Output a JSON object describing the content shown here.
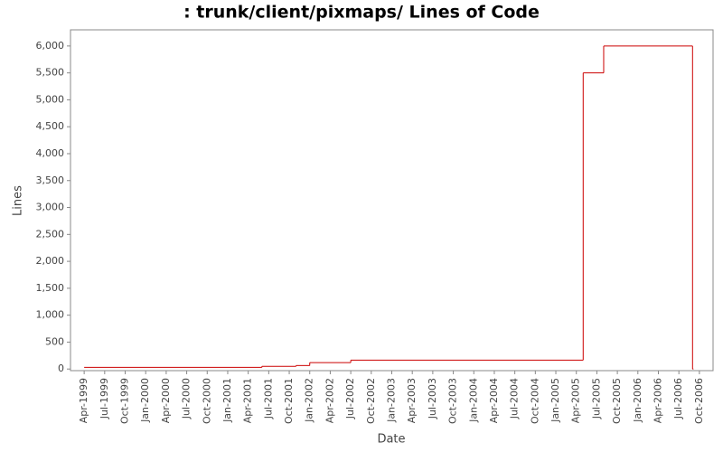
{
  "chart_data": {
    "type": "step",
    "title": ": trunk/client/pixmaps/ Lines of Code",
    "x_label": "Date",
    "y_label": "Lines",
    "series": [
      {
        "name": "Lines",
        "color": "#cc0000",
        "x": [
          "1999-04",
          "2001-06",
          "2001-11",
          "2002-01",
          "2002-07",
          "2005-05",
          "2005-08",
          "2006-09"
        ],
        "values": [
          30,
          50,
          65,
          120,
          165,
          5500,
          6000,
          0
        ]
      }
    ],
    "xlim": [
      "1999-02",
      "2006-12"
    ],
    "xticks": [
      {
        "value": "1999-04",
        "label": "Apr-1999"
      },
      {
        "value": "1999-07",
        "label": "Jul-1999"
      },
      {
        "value": "1999-10",
        "label": "Oct-1999"
      },
      {
        "value": "2000-01",
        "label": "Jan-2000"
      },
      {
        "value": "2000-04",
        "label": "Apr-2000"
      },
      {
        "value": "2000-07",
        "label": "Jul-2000"
      },
      {
        "value": "2000-10",
        "label": "Oct-2000"
      },
      {
        "value": "2001-01",
        "label": "Jan-2001"
      },
      {
        "value": "2001-04",
        "label": "Apr-2001"
      },
      {
        "value": "2001-07",
        "label": "Jul-2001"
      },
      {
        "value": "2001-10",
        "label": "Oct-2001"
      },
      {
        "value": "2002-01",
        "label": "Jan-2002"
      },
      {
        "value": "2002-04",
        "label": "Apr-2002"
      },
      {
        "value": "2002-07",
        "label": "Jul-2002"
      },
      {
        "value": "2002-10",
        "label": "Oct-2002"
      },
      {
        "value": "2003-01",
        "label": "Jan-2003"
      },
      {
        "value": "2003-04",
        "label": "Apr-2003"
      },
      {
        "value": "2003-07",
        "label": "Jul-2003"
      },
      {
        "value": "2003-10",
        "label": "Oct-2003"
      },
      {
        "value": "2004-01",
        "label": "Jan-2004"
      },
      {
        "value": "2004-04",
        "label": "Apr-2004"
      },
      {
        "value": "2004-07",
        "label": "Jul-2004"
      },
      {
        "value": "2004-10",
        "label": "Oct-2004"
      },
      {
        "value": "2005-01",
        "label": "Jan-2005"
      },
      {
        "value": "2005-04",
        "label": "Apr-2005"
      },
      {
        "value": "2005-07",
        "label": "Jul-2005"
      },
      {
        "value": "2005-10",
        "label": "Oct-2005"
      },
      {
        "value": "2006-01",
        "label": "Jan-2006"
      },
      {
        "value": "2006-04",
        "label": "Apr-2006"
      },
      {
        "value": "2006-07",
        "label": "Jul-2006"
      },
      {
        "value": "2006-10",
        "label": "Oct-2006"
      }
    ],
    "ylim": [
      -30,
      6300
    ],
    "yticks": [
      0,
      500,
      {
        "value": 1000,
        "label": "1,000"
      },
      {
        "value": 1500,
        "label": "1,500"
      },
      {
        "value": 2000,
        "label": "2,000"
      },
      {
        "value": 2500,
        "label": "2,500"
      },
      {
        "value": 3000,
        "label": "3,000"
      },
      {
        "value": 3500,
        "label": "3,500"
      },
      {
        "value": 4000,
        "label": "4,000"
      },
      {
        "value": 4500,
        "label": "4,500"
      },
      {
        "value": 5000,
        "label": "5,000"
      },
      {
        "value": 5500,
        "label": "5,500"
      },
      {
        "value": 6000,
        "label": "6,000"
      }
    ],
    "grid": false
  }
}
